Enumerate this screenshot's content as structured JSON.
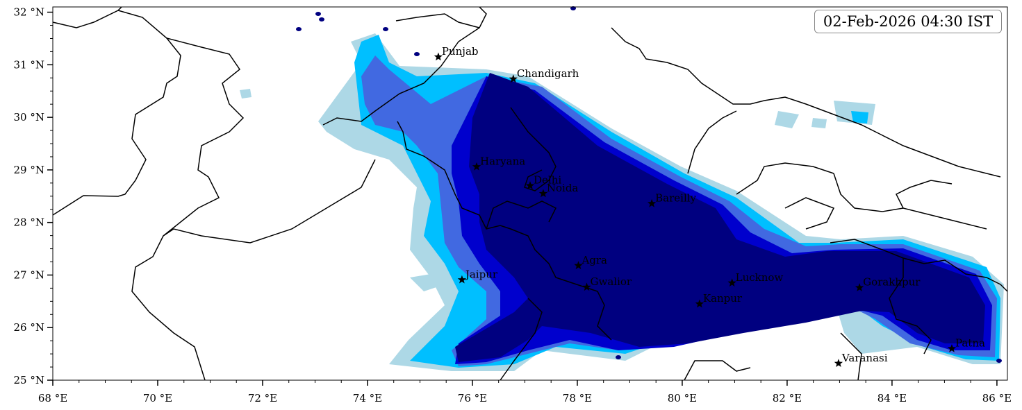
{
  "timestamp": "02-Feb-2026 04:30 IST",
  "axes": {
    "x_ticks": [
      "68 °E",
      "70 °E",
      "72 °E",
      "74 °E",
      "76 °E",
      "78 °E",
      "80 °E",
      "82 °E",
      "84 °E",
      "86 °E"
    ],
    "y_ticks": [
      "25 °N",
      "26 °N",
      "27 °N",
      "28 °N",
      "29 °N",
      "30 °N",
      "31 °N",
      "32 °N"
    ],
    "xlim": [
      68,
      86.2
    ],
    "ylim": [
      25,
      32.1
    ]
  },
  "cities": [
    {
      "name": "Punjab",
      "lon": 75.35,
      "lat": 31.15
    },
    {
      "name": "Chandigarh",
      "lon": 76.78,
      "lat": 30.73
    },
    {
      "name": "Haryana",
      "lon": 76.08,
      "lat": 29.06
    },
    {
      "name": "Delhi",
      "lon": 77.1,
      "lat": 28.7
    },
    {
      "name": "Noida",
      "lon": 77.35,
      "lat": 28.55
    },
    {
      "name": "Bareilly",
      "lon": 79.42,
      "lat": 28.36
    },
    {
      "name": "Agra",
      "lon": 78.02,
      "lat": 27.18
    },
    {
      "name": "Jaipur",
      "lon": 75.8,
      "lat": 26.91
    },
    {
      "name": "Gwalior",
      "lon": 78.18,
      "lat": 26.77
    },
    {
      "name": "Lucknow",
      "lon": 80.95,
      "lat": 26.85
    },
    {
      "name": "Kanpur",
      "lon": 80.33,
      "lat": 26.45
    },
    {
      "name": "Gorakhpur",
      "lon": 83.38,
      "lat": 26.76
    },
    {
      "name": "Varanasi",
      "lon": 82.98,
      "lat": 25.32
    },
    {
      "name": "Patna",
      "lon": 85.14,
      "lat": 25.6
    }
  ],
  "colors": {
    "level1": "#add8e6",
    "level2": "#00bfff",
    "level3": "#4169e1",
    "level4": "#0000cd",
    "level5": "#000080",
    "border": "#000000"
  }
}
